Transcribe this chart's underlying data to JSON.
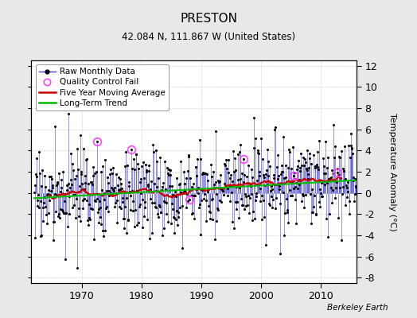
{
  "title": "PRESTON",
  "subtitle": "42.084 N, 111.867 W (United States)",
  "ylabel": "Temperature Anomaly (°C)",
  "credit": "Berkeley Earth",
  "ylim": [
    -8.5,
    12.5
  ],
  "yticks": [
    -8,
    -6,
    -4,
    -2,
    0,
    2,
    4,
    6,
    8,
    10,
    12
  ],
  "year_start": 1962,
  "year_end": 2015,
  "xtick_years": [
    1970,
    1980,
    1990,
    2000,
    2010
  ],
  "bg_color": "#e8e8e8",
  "plot_bg_color": "#ffffff",
  "grid_color": "#cccccc",
  "raw_line_color": "#4444cc",
  "raw_marker_color": "#000000",
  "ma_color": "#cc0000",
  "trend_color": "#00bb00",
  "qc_color": "#ff44ff",
  "title_fontsize": 11,
  "subtitle_fontsize": 8.5,
  "tick_fontsize": 9,
  "legend_fontsize": 7.5,
  "ylabel_fontsize": 8
}
